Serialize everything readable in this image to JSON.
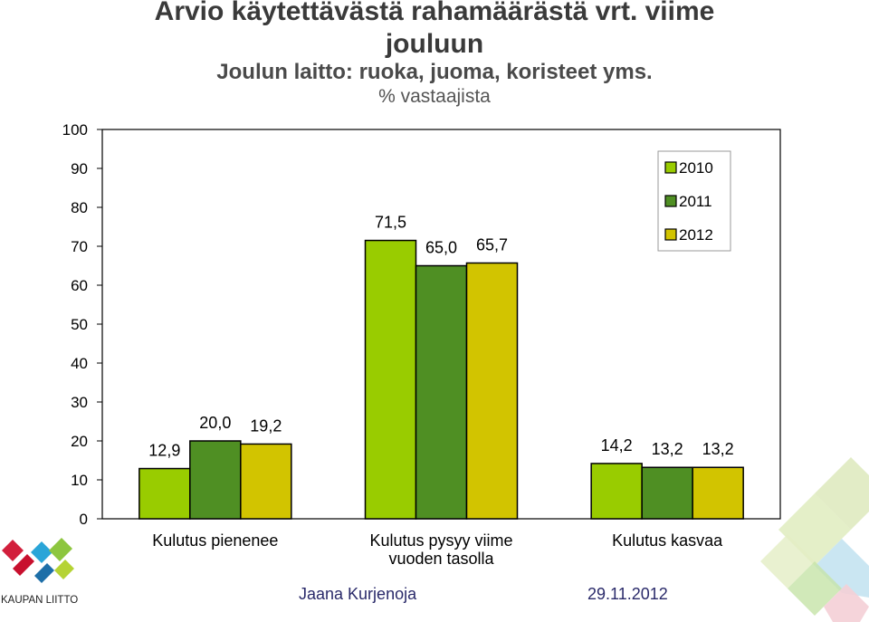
{
  "chart_data": {
    "type": "bar",
    "title_line1": "Arvio käytettävästä rahamäärästä vrt. viime",
    "title_line2": "jouluun",
    "subtitle": "Joulun laitto: ruoka, juoma, koristeet yms.",
    "ylabel": "% vastaajista",
    "xlabel": "",
    "ylim": [
      0,
      100
    ],
    "yticks": [
      0,
      10,
      20,
      30,
      40,
      50,
      60,
      70,
      80,
      90,
      100
    ],
    "grid": false,
    "legend_position": "top-right",
    "categories": [
      [
        "Kulutus pienenee"
      ],
      [
        "Kulutus pysyy viime",
        "vuoden tasolla"
      ],
      [
        "Kulutus kasvaa"
      ]
    ],
    "series": [
      {
        "name": "2010",
        "color": "#99cc00",
        "values": [
          12.9,
          71.5,
          14.2
        ],
        "labels": [
          "12,9",
          "71,5",
          "14,2"
        ]
      },
      {
        "name": "2011",
        "color": "#4f8f23",
        "values": [
          20.0,
          65.0,
          13.2
        ],
        "labels": [
          "20,0",
          "65,0",
          "13,2"
        ]
      },
      {
        "name": "2012",
        "color": "#d2c400",
        "values": [
          19.2,
          65.7,
          13.2
        ],
        "labels": [
          "19,2",
          "65,7",
          "13,2"
        ]
      }
    ]
  },
  "footer": {
    "author": "Jaana Kurjenoja",
    "date": "29.11.2012",
    "logo_text": "KAUPAN LIITTO"
  }
}
